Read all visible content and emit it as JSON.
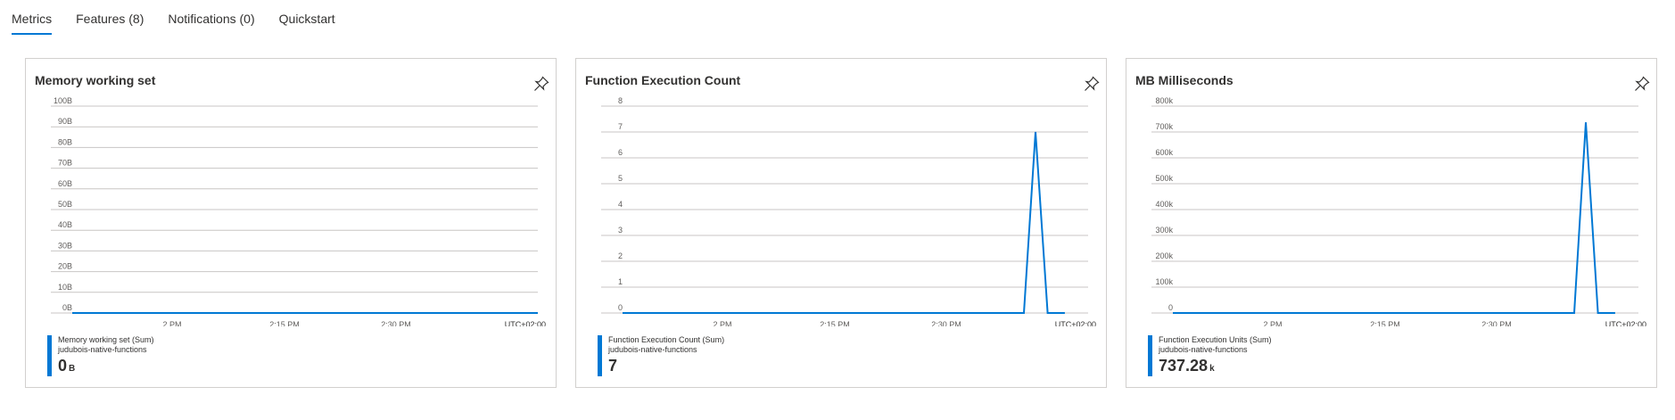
{
  "tabs": [
    {
      "label": "Metrics",
      "active": true
    },
    {
      "label": "Features (8)",
      "active": false
    },
    {
      "label": "Notifications (0)",
      "active": false
    },
    {
      "label": "Quickstart",
      "active": false
    }
  ],
  "colors": {
    "series": "#0078d4",
    "grid": "#c8c6c4",
    "tab_underline": "#0078d4"
  },
  "pin_icon": "pin-icon",
  "chart_data": [
    {
      "type": "line",
      "title": "Memory working set",
      "y_ticks": [
        "100B",
        "90B",
        "80B",
        "70B",
        "60B",
        "50B",
        "40B",
        "30B",
        "20B",
        "10B",
        "0B"
      ],
      "ylim": [
        0,
        100
      ],
      "x_ticks": [
        "2 PM",
        "2:15 PM",
        "2:30 PM"
      ],
      "timezone": "UTC+02:00",
      "series": [
        {
          "name": "Memory working set (Sum)",
          "x": [
            0,
            1
          ],
          "y": [
            0,
            0
          ]
        }
      ],
      "legend": {
        "name": "Memory working set (Sum)",
        "resource": "judubois-native-functions",
        "value": "0",
        "unit": "B"
      }
    },
    {
      "type": "line",
      "title": "Function Execution Count",
      "y_ticks": [
        "8",
        "7",
        "6",
        "5",
        "4",
        "3",
        "2",
        "1",
        "0"
      ],
      "ylim": [
        0,
        8
      ],
      "x_ticks": [
        "2 PM",
        "2:15 PM",
        "2:30 PM"
      ],
      "timezone": "UTC+02:00",
      "series": [
        {
          "name": "Function Execution Count (Sum)",
          "x": [
            0,
            0.862,
            0.887,
            0.913,
            0.95
          ],
          "y": [
            0,
            0,
            7,
            0,
            0
          ]
        }
      ],
      "legend": {
        "name": "Function Execution Count (Sum)",
        "resource": "judubois-native-functions",
        "value": "7",
        "unit": ""
      }
    },
    {
      "type": "line",
      "title": "MB Milliseconds",
      "y_ticks": [
        "800k",
        "700k",
        "600k",
        "500k",
        "400k",
        "300k",
        "200k",
        "100k",
        "0"
      ],
      "ylim": [
        0,
        800000
      ],
      "x_ticks": [
        "2 PM",
        "2:15 PM",
        "2:30 PM"
      ],
      "timezone": "UTC+02:00",
      "series": [
        {
          "name": "Function Execution Units (Sum)",
          "x": [
            0,
            0.862,
            0.887,
            0.913,
            0.95
          ],
          "y": [
            0,
            0,
            737280,
            0,
            0
          ]
        }
      ],
      "legend": {
        "name": "Function Execution Units (Sum)",
        "resource": "judubois-native-functions",
        "value": "737.28",
        "unit": "k"
      }
    }
  ]
}
